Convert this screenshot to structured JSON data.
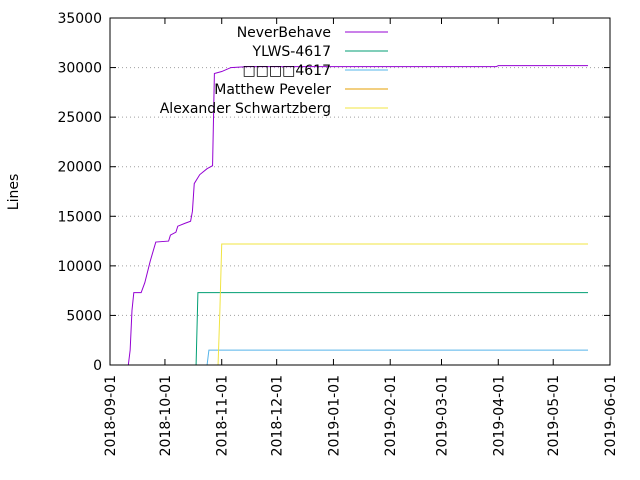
{
  "chart_data": {
    "type": "line",
    "ylabel": "Lines",
    "xlim": [
      "2018-09-01",
      "2019-06-01"
    ],
    "ylim": [
      0,
      35000
    ],
    "y_ticks": [
      0,
      5000,
      10000,
      15000,
      20000,
      25000,
      30000,
      35000
    ],
    "x_ticks": [
      "2018-09-01",
      "2018-10-01",
      "2018-11-01",
      "2018-12-01",
      "2019-01-01",
      "2019-02-01",
      "2019-03-01",
      "2019-04-01",
      "2019-05-01",
      "2019-06-01"
    ],
    "grid": true,
    "legend_position": "top-left",
    "series": [
      {
        "name": "NeverBehave",
        "color": "#9400d3",
        "points": [
          [
            "2018-09-01",
            0
          ],
          [
            "2018-09-11",
            0
          ],
          [
            "2018-09-12",
            1500
          ],
          [
            "2018-09-13",
            5500
          ],
          [
            "2018-09-14",
            7300
          ],
          [
            "2018-09-18",
            7300
          ],
          [
            "2018-09-20",
            8300
          ],
          [
            "2018-09-23",
            10500
          ],
          [
            "2018-09-26",
            12400
          ],
          [
            "2018-10-03",
            12500
          ],
          [
            "2018-10-04",
            13100
          ],
          [
            "2018-10-07",
            13400
          ],
          [
            "2018-10-08",
            14000
          ],
          [
            "2018-10-12",
            14300
          ],
          [
            "2018-10-15",
            14500
          ],
          [
            "2018-10-16",
            15500
          ],
          [
            "2018-10-17",
            18300
          ],
          [
            "2018-10-20",
            19200
          ],
          [
            "2018-10-24",
            19800
          ],
          [
            "2018-10-27",
            20100
          ],
          [
            "2018-10-28",
            29400
          ],
          [
            "2018-11-01",
            29600
          ],
          [
            "2018-11-06",
            30000
          ],
          [
            "2018-11-15",
            30100
          ],
          [
            "2019-03-31",
            30100
          ],
          [
            "2019-04-01",
            30200
          ],
          [
            "2019-05-20",
            30200
          ]
        ]
      },
      {
        "name": "YLWS-4617",
        "color": "#009e73",
        "points": [
          [
            "2018-09-01",
            0
          ],
          [
            "2018-10-18",
            0
          ],
          [
            "2018-10-19",
            7300
          ],
          [
            "2019-05-20",
            7300
          ]
        ]
      },
      {
        "name": "□□□□4617",
        "color": "#56b4e9",
        "points": [
          [
            "2018-09-01",
            0
          ],
          [
            "2018-10-24",
            0
          ],
          [
            "2018-10-25",
            1500
          ],
          [
            "2019-05-20",
            1500
          ]
        ]
      },
      {
        "name": "Matthew Peveler",
        "color": "#e69f00",
        "points": [
          [
            "2018-09-01",
            0
          ],
          [
            "2018-10-30",
            0
          ],
          [
            "2019-05-20",
            0
          ]
        ]
      },
      {
        "name": "Alexander Schwartzberg",
        "color": "#f0e442",
        "points": [
          [
            "2018-09-01",
            0
          ],
          [
            "2018-10-30",
            0
          ],
          [
            "2018-10-31",
            5500
          ],
          [
            "2018-11-01",
            12200
          ],
          [
            "2019-05-20",
            12200
          ]
        ]
      }
    ]
  }
}
